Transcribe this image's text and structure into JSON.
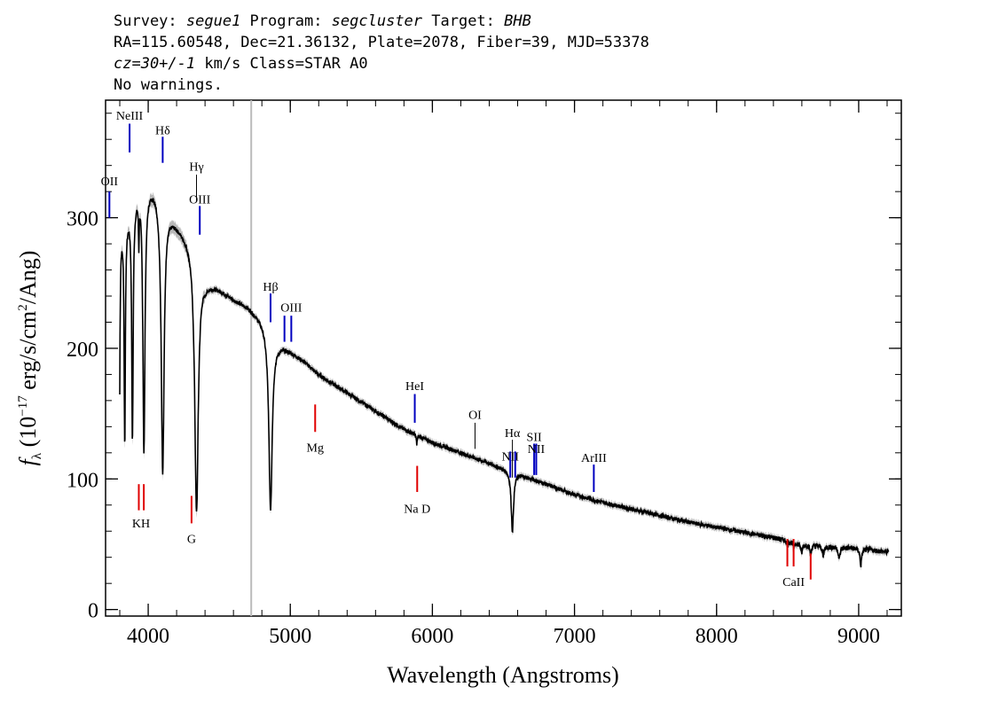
{
  "header": {
    "survey_label": "Survey: ",
    "survey": "segue1",
    "program_label": " Program: ",
    "program": "segcluster",
    "target_label": " Target: ",
    "target": "BHB",
    "line2": "RA=115.60548, Dec=21.36132, Plate=2078, Fiber=39, MJD=53378",
    "cz": "cz=30+/-1",
    "cz_rest": " km/s Class=STAR A0",
    "line4": "No warnings."
  },
  "chart_data": {
    "type": "line",
    "xlabel": "Wavelength (Angstroms)",
    "ylabel_parts": {
      "f": "f",
      "lambda": "λ",
      "open": " (10",
      "exp": "−17",
      "mid": " erg/s/cm",
      "sq": "2",
      "close": "/Ang)"
    },
    "xlim": [
      3700,
      9300
    ],
    "ylim": [
      -5,
      390
    ],
    "x_ticks": [
      {
        "value": 4000,
        "label": "4000"
      },
      {
        "value": 5000,
        "label": "5000"
      },
      {
        "value": 6000,
        "label": "6000"
      },
      {
        "value": 7000,
        "label": "7000"
      },
      {
        "value": 8000,
        "label": "8000"
      },
      {
        "value": 9000,
        "label": "9000"
      }
    ],
    "y_ticks": [
      {
        "value": 0,
        "label": "0"
      },
      {
        "value": 100,
        "label": "100"
      },
      {
        "value": 200,
        "label": "200"
      },
      {
        "value": 300,
        "label": "300"
      }
    ],
    "vertical_marker": {
      "x": 4725,
      "color": "#bbbbbb"
    },
    "continuum": [
      [
        3800,
        290
      ],
      [
        3900,
        315
      ],
      [
        3950,
        330
      ],
      [
        4000,
        326
      ],
      [
        4050,
        324
      ],
      [
        4100,
        312
      ],
      [
        4200,
        296
      ],
      [
        4300,
        282
      ],
      [
        4400,
        252
      ],
      [
        4500,
        246
      ],
      [
        4600,
        238
      ],
      [
        4700,
        232
      ],
      [
        4800,
        222
      ],
      [
        4900,
        205
      ],
      [
        5000,
        198
      ],
      [
        5100,
        190
      ],
      [
        5200,
        180
      ],
      [
        5400,
        166
      ],
      [
        5600,
        152
      ],
      [
        5800,
        138
      ],
      [
        6000,
        128
      ],
      [
        6200,
        120
      ],
      [
        6400,
        112
      ],
      [
        6600,
        104
      ],
      [
        6800,
        96
      ],
      [
        7000,
        88
      ],
      [
        7200,
        82
      ],
      [
        7400,
        77
      ],
      [
        7600,
        72
      ],
      [
        7800,
        67
      ],
      [
        8000,
        63
      ],
      [
        8200,
        59
      ],
      [
        8400,
        55
      ],
      [
        8600,
        50
      ],
      [
        8800,
        48
      ],
      [
        9000,
        47
      ],
      [
        9200,
        44
      ]
    ],
    "absorption_lines": [
      {
        "x": 3798,
        "depth": 150,
        "width": 4
      },
      {
        "x": 3835,
        "depth": 170,
        "width": 5
      },
      {
        "x": 3889,
        "depth": 180,
        "width": 6
      },
      {
        "x": 3934,
        "depth": 35,
        "width": 3
      },
      {
        "x": 3970,
        "depth": 205,
        "width": 9
      },
      {
        "x": 4102,
        "depth": 205,
        "width": 12
      },
      {
        "x": 4340,
        "depth": 195,
        "width": 15
      },
      {
        "x": 4861,
        "depth": 135,
        "width": 14
      },
      {
        "x": 5890,
        "depth": 8,
        "width": 3
      },
      {
        "x": 6563,
        "depth": 45,
        "width": 10
      },
      {
        "x": 8498,
        "depth": 4,
        "width": 4
      },
      {
        "x": 8542,
        "depth": 6,
        "width": 4
      },
      {
        "x": 8598,
        "depth": 7,
        "width": 6
      },
      {
        "x": 8662,
        "depth": 8,
        "width": 6
      },
      {
        "x": 8750,
        "depth": 8,
        "width": 6
      },
      {
        "x": 8863,
        "depth": 9,
        "width": 7
      },
      {
        "x": 9015,
        "depth": 13,
        "width": 7
      }
    ],
    "emission_line_markers": [
      {
        "x": 3727,
        "label": "OII",
        "color": "#0000c0",
        "bar": [
          300,
          320
        ],
        "label_y": 325
      },
      {
        "x": 3869,
        "label": "NeIII",
        "color": "#0000c0",
        "bar": [
          350,
          372
        ],
        "label_y": 375
      },
      {
        "x": 4102,
        "label": "Hδ",
        "color": "#0000c0",
        "bar": [
          342,
          362
        ],
        "label_y": 364
      },
      {
        "x": 4340,
        "label": "Hγ",
        "color": "#000000",
        "bar": [
          313,
          333
        ],
        "label_y": 336
      },
      {
        "x": 4363,
        "label": "OIII",
        "color": "#0000c0",
        "bar": [
          287,
          309
        ],
        "label_y": 311
      },
      {
        "x": 4861,
        "label": "Hβ",
        "color": "#0000c0",
        "bar": [
          220,
          242
        ],
        "label_y": 244
      },
      {
        "x": 4959,
        "label": "",
        "color": "#0000c0",
        "bar": [
          205,
          225
        ],
        "label_y": 0
      },
      {
        "x": 5007,
        "label": "OIII",
        "color": "#0000c0",
        "bar": [
          205,
          225
        ],
        "label_y": 228
      },
      {
        "x": 5876,
        "label": "HeI",
        "color": "#0000c0",
        "bar": [
          143,
          165
        ],
        "label_y": 168
      },
      {
        "x": 6300,
        "label": "OI",
        "color": "#000000",
        "bar": [
          123,
          143
        ],
        "label_y": 146
      },
      {
        "x": 6548,
        "label": "NII",
        "color": "#0000c0",
        "bar": [
          101,
          121
        ],
        "label_y": 114
      },
      {
        "x": 6563,
        "label": "Hα",
        "color": "#000000",
        "bar": [
          101,
          130
        ],
        "label_y": 132
      },
      {
        "x": 6583,
        "label": "",
        "color": "#0000c0",
        "bar": [
          101,
          121
        ],
        "label_y": 0
      },
      {
        "x": 6716,
        "label": "SII",
        "color": "#0000c0",
        "bar": [
          103,
          127
        ],
        "label_y": 129
      },
      {
        "x": 6731,
        "label": "NII",
        "color": "#0000c0",
        "bar": [
          103,
          127
        ],
        "label_y": 120
      },
      {
        "x": 7136,
        "label": "ArIII",
        "color": "#0000c0",
        "bar": [
          90,
          111
        ],
        "label_y": 113
      }
    ],
    "absorption_line_markers": [
      {
        "x": 3934,
        "label": "",
        "color": "#e00000",
        "bar": [
          76,
          96
        ],
        "label_y": 0
      },
      {
        "x": 3969,
        "label": "",
        "color": "#e00000",
        "bar": [
          76,
          96
        ],
        "label_y": 0
      },
      {
        "x": 3950,
        "label": "KH",
        "color": "#e00000",
        "bar": [
          76,
          76
        ],
        "label_y": 63
      },
      {
        "x": 4305,
        "label": "G",
        "color": "#e00000",
        "bar": [
          66,
          87
        ],
        "label_y": 51
      },
      {
        "x": 5175,
        "label": "Mg",
        "color": "#e00000",
        "bar": [
          136,
          157
        ],
        "label_y": 121
      },
      {
        "x": 5893,
        "label": "Na D",
        "color": "#e00000",
        "bar": [
          90,
          110
        ],
        "label_y": 74
      },
      {
        "x": 8498,
        "label": "",
        "color": "#e00000",
        "bar": [
          33,
          54
        ],
        "label_y": 0
      },
      {
        "x": 8542,
        "label": "CaII",
        "color": "#e00000",
        "bar": [
          33,
          54
        ],
        "label_y": 18
      },
      {
        "x": 8662,
        "label": "",
        "color": "#e00000",
        "bar": [
          23,
          43
        ],
        "label_y": 0
      }
    ]
  }
}
